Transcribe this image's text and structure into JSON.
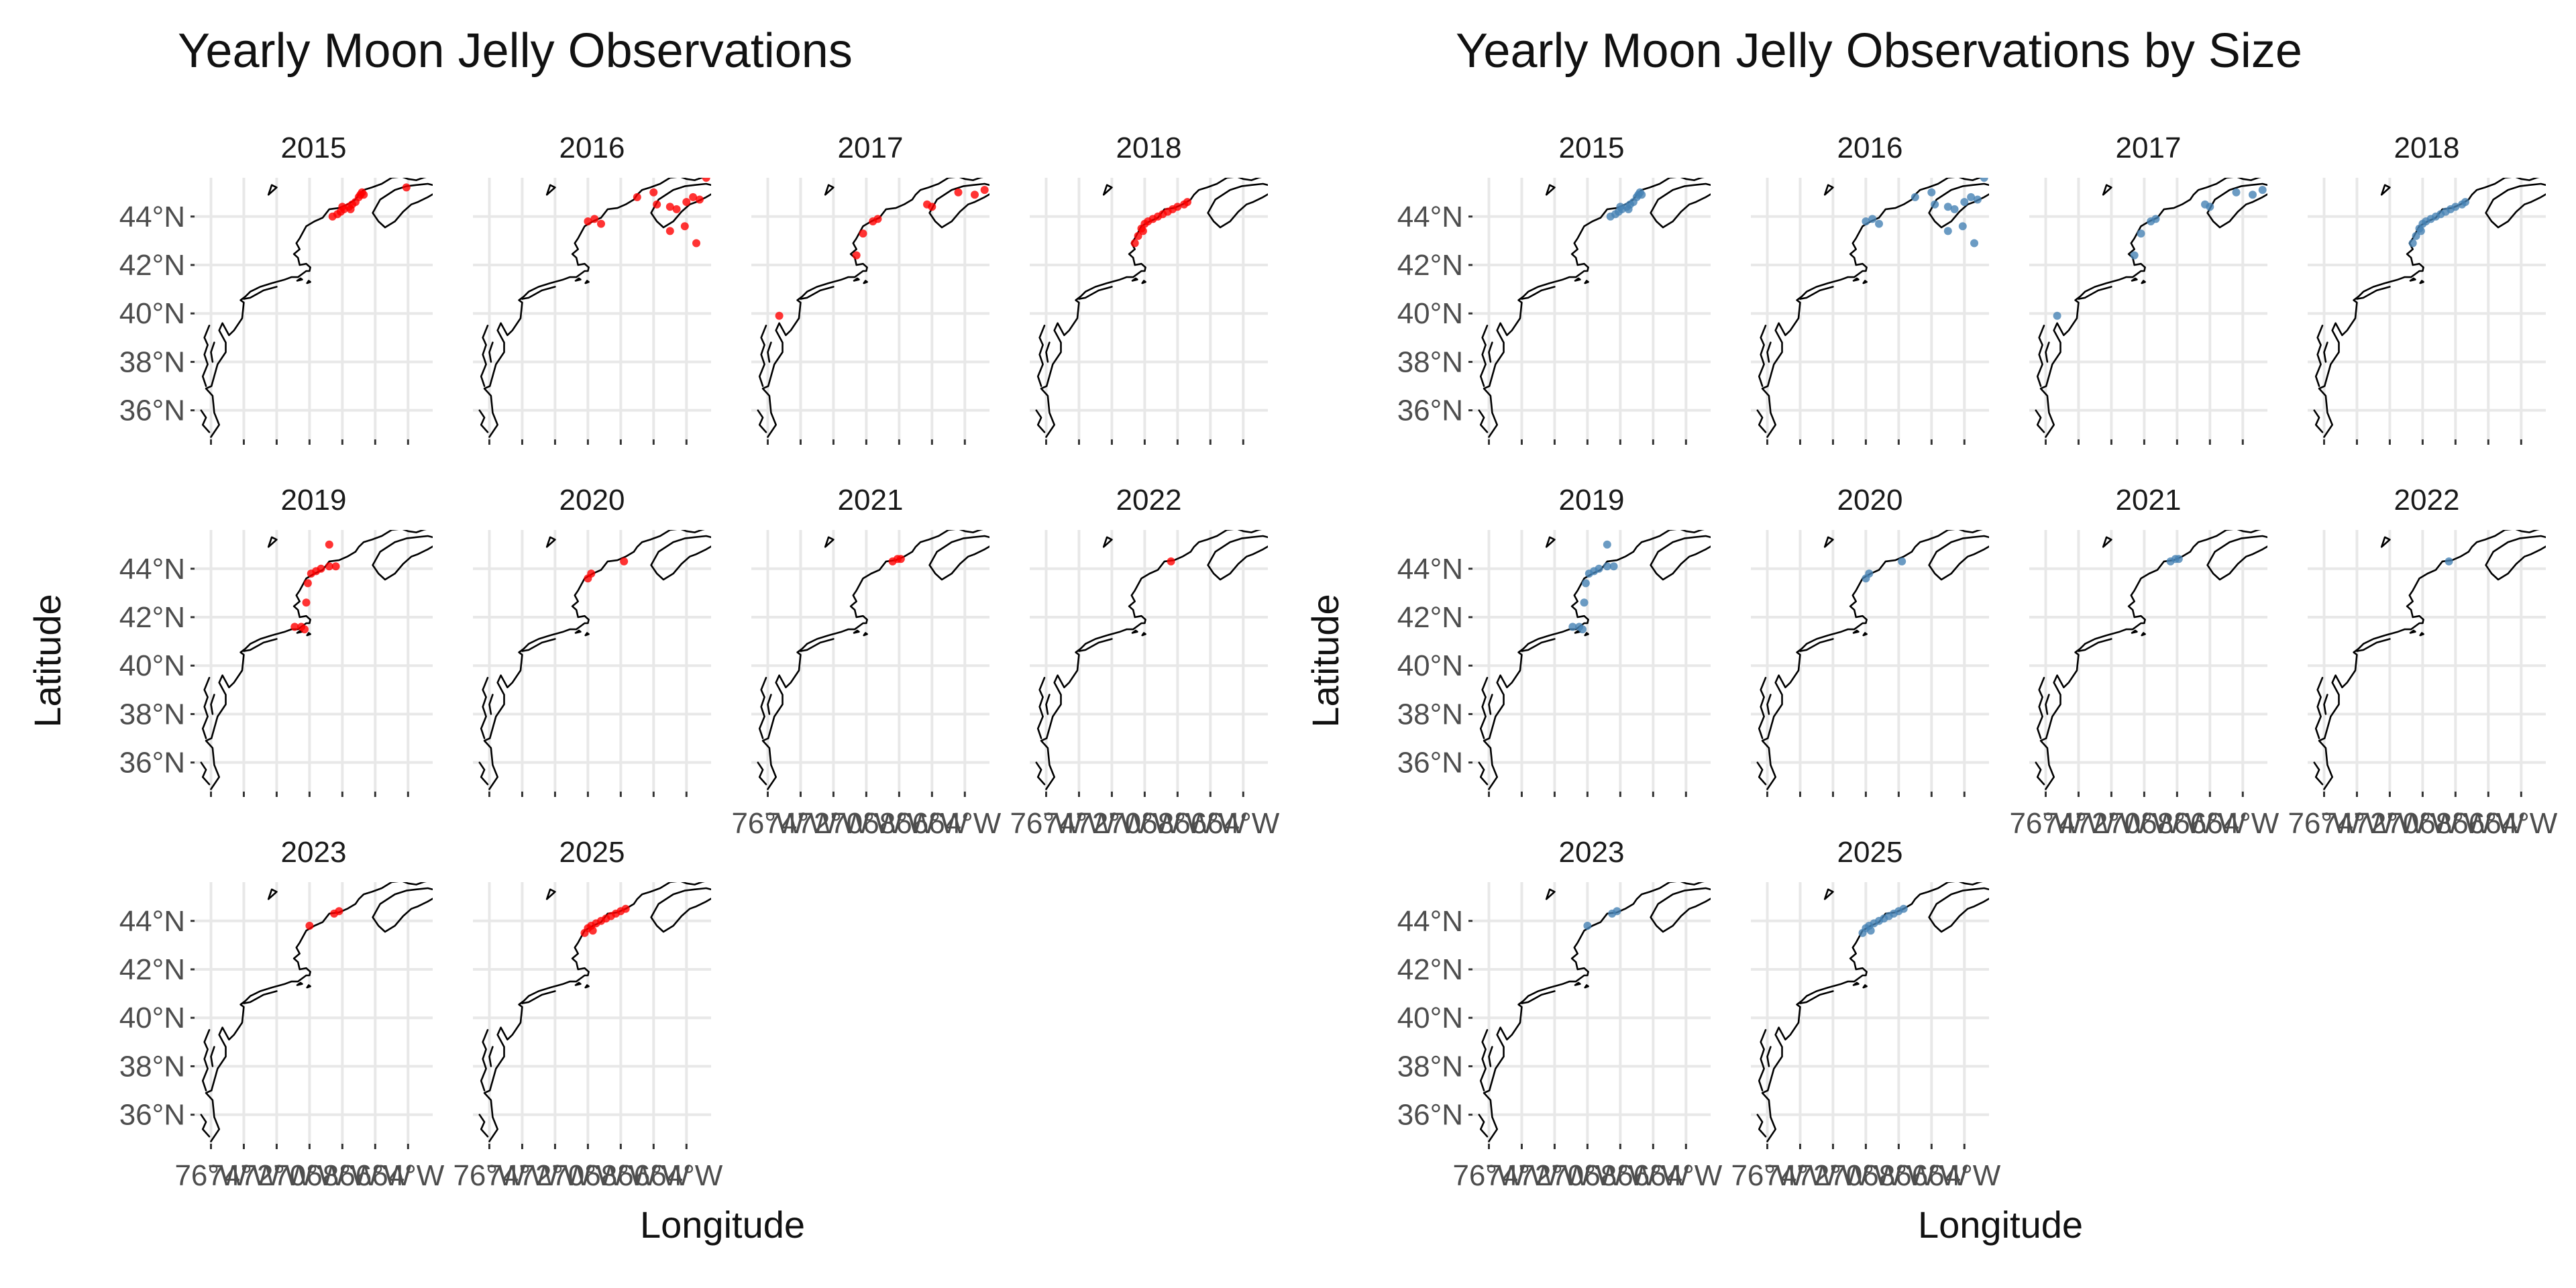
{
  "chart_data": [
    {
      "type": "scatter",
      "title": "Yearly Moon Jelly Observations",
      "xlabel": "Longitude",
      "ylabel": "Latitude",
      "point_color": "#ff0000",
      "facet_variable": "year",
      "xlim": [
        -77,
        -62.5
      ],
      "ylim": [
        34.8,
        45.6
      ],
      "x_ticks": [
        "76°W",
        "74°W",
        "72°W",
        "70°W",
        "68°W",
        "66°W",
        "64°W"
      ],
      "y_ticks": [
        "36°N",
        "38°N",
        "40°N",
        "42°N",
        "44°N"
      ],
      "basemap": "US / Canada Atlantic coastline",
      "panels": [
        {
          "year": "2015",
          "points": [
            [
              -68.6,
              44.0
            ],
            [
              -68.3,
              44.1
            ],
            [
              -68.1,
              44.2
            ],
            [
              -67.9,
              44.3
            ],
            [
              -67.6,
              44.4
            ],
            [
              -67.4,
              44.5
            ],
            [
              -67.2,
              44.6
            ],
            [
              -67.0,
              44.8
            ],
            [
              -66.9,
              44.9
            ],
            [
              -66.8,
              45.0
            ],
            [
              -66.7,
              44.9
            ],
            [
              -68.0,
              44.4
            ],
            [
              -67.5,
              44.3
            ],
            [
              -64.1,
              45.2
            ]
          ]
        },
        {
          "year": "2016",
          "points": [
            [
              -70.0,
              43.8
            ],
            [
              -69.6,
              43.9
            ],
            [
              -69.2,
              43.7
            ],
            [
              -67.0,
              44.8
            ],
            [
              -66.0,
              45.0
            ],
            [
              -65.8,
              44.5
            ],
            [
              -65.0,
              44.4
            ],
            [
              -64.6,
              44.3
            ],
            [
              -64.0,
              44.6
            ],
            [
              -63.6,
              44.8
            ],
            [
              -63.2,
              44.7
            ],
            [
              -64.1,
              43.6
            ],
            [
              -65.0,
              43.4
            ],
            [
              -63.4,
              42.9
            ],
            [
              -62.8,
              45.6
            ]
          ]
        },
        {
          "year": "2017",
          "points": [
            [
              -75.3,
              39.9
            ],
            [
              -70.6,
              42.4
            ],
            [
              -70.2,
              43.3
            ],
            [
              -69.6,
              43.8
            ],
            [
              -69.3,
              43.9
            ],
            [
              -66.3,
              44.5
            ],
            [
              -66.0,
              44.4
            ],
            [
              -64.4,
              45.0
            ],
            [
              -63.4,
              44.9
            ],
            [
              -62.8,
              45.1
            ]
          ]
        },
        {
          "year": "2018",
          "points": [
            [
              -70.6,
              42.9
            ],
            [
              -70.4,
              43.2
            ],
            [
              -70.2,
              43.5
            ],
            [
              -70.0,
              43.7
            ],
            [
              -69.8,
              43.8
            ],
            [
              -69.5,
              43.9
            ],
            [
              -69.2,
              44.0
            ],
            [
              -68.9,
              44.1
            ],
            [
              -68.6,
              44.2
            ],
            [
              -68.3,
              44.3
            ],
            [
              -68.0,
              44.4
            ],
            [
              -67.6,
              44.5
            ],
            [
              -67.4,
              44.6
            ],
            [
              -70.1,
              43.4
            ]
          ]
        },
        {
          "year": "2019",
          "points": [
            [
              -70.9,
              41.6
            ],
            [
              -70.5,
              41.6
            ],
            [
              -70.3,
              41.5
            ],
            [
              -70.2,
              42.6
            ],
            [
              -70.1,
              43.4
            ],
            [
              -69.9,
              43.8
            ],
            [
              -69.6,
              43.9
            ],
            [
              -69.3,
              44.0
            ],
            [
              -68.8,
              44.1
            ],
            [
              -68.4,
              44.1
            ],
            [
              -68.8,
              45.0
            ]
          ]
        },
        {
          "year": "2020",
          "points": [
            [
              -70.0,
              43.6
            ],
            [
              -69.8,
              43.8
            ],
            [
              -67.8,
              44.3
            ]
          ]
        },
        {
          "year": "2021",
          "points": [
            [
              -68.4,
              44.3
            ],
            [
              -68.1,
              44.4
            ],
            [
              -67.9,
              44.4
            ]
          ]
        },
        {
          "year": "2022",
          "points": [
            [
              -68.4,
              44.3
            ]
          ]
        },
        {
          "year": "2023",
          "points": [
            [
              -70.0,
              43.8
            ],
            [
              -68.5,
              44.3
            ],
            [
              -68.2,
              44.4
            ]
          ]
        },
        {
          "year": "2025",
          "points": [
            [
              -70.2,
              43.5
            ],
            [
              -70.0,
              43.7
            ],
            [
              -69.8,
              43.8
            ],
            [
              -69.5,
              43.9
            ],
            [
              -69.2,
              44.0
            ],
            [
              -68.9,
              44.1
            ],
            [
              -68.6,
              44.2
            ],
            [
              -68.3,
              44.3
            ],
            [
              -68.0,
              44.4
            ],
            [
              -67.7,
              44.5
            ],
            [
              -69.7,
              43.6
            ]
          ]
        }
      ]
    },
    {
      "type": "scatter",
      "title": "Yearly Moon Jelly Observations by Size",
      "xlabel": "Longitude",
      "ylabel": "Latitude",
      "point_color": "#4682b4",
      "facet_variable": "year",
      "xlim": [
        -77,
        -62.5
      ],
      "ylim": [
        34.8,
        45.6
      ],
      "x_ticks": [
        "76°W",
        "74°W",
        "72°W",
        "70°W",
        "68°W",
        "66°W",
        "64°W"
      ],
      "y_ticks": [
        "36°N",
        "38°N",
        "40°N",
        "42°N",
        "44°N"
      ],
      "basemap": "US / Canada Atlantic coastline",
      "panels": [
        {
          "year": "2015",
          "points": [
            [
              -68.6,
              44.0
            ],
            [
              -68.3,
              44.1
            ],
            [
              -68.1,
              44.2
            ],
            [
              -67.9,
              44.3
            ],
            [
              -67.6,
              44.4
            ],
            [
              -67.4,
              44.5
            ],
            [
              -67.2,
              44.6
            ],
            [
              -67.0,
              44.8
            ],
            [
              -66.9,
              44.9
            ],
            [
              -66.8,
              45.0
            ],
            [
              -66.7,
              44.9
            ],
            [
              -68.0,
              44.4
            ],
            [
              -67.5,
              44.3
            ]
          ]
        },
        {
          "year": "2016",
          "points": [
            [
              -70.0,
              43.8
            ],
            [
              -69.6,
              43.9
            ],
            [
              -69.2,
              43.7
            ],
            [
              -67.0,
              44.8
            ],
            [
              -66.0,
              45.0
            ],
            [
              -65.8,
              44.5
            ],
            [
              -65.0,
              44.4
            ],
            [
              -64.6,
              44.3
            ],
            [
              -64.0,
              44.6
            ],
            [
              -63.6,
              44.8
            ],
            [
              -63.2,
              44.7
            ],
            [
              -64.1,
              43.6
            ],
            [
              -65.0,
              43.4
            ],
            [
              -63.4,
              42.9
            ],
            [
              -62.8,
              45.6
            ]
          ]
        },
        {
          "year": "2017",
          "points": [
            [
              -75.3,
              39.9
            ],
            [
              -70.6,
              42.4
            ],
            [
              -70.2,
              43.3
            ],
            [
              -69.6,
              43.8
            ],
            [
              -69.3,
              43.9
            ],
            [
              -66.3,
              44.5
            ],
            [
              -66.0,
              44.4
            ],
            [
              -64.4,
              45.0
            ],
            [
              -63.4,
              44.9
            ],
            [
              -62.8,
              45.1
            ]
          ]
        },
        {
          "year": "2018",
          "points": [
            [
              -70.6,
              42.9
            ],
            [
              -70.4,
              43.2
            ],
            [
              -70.2,
              43.5
            ],
            [
              -70.0,
              43.7
            ],
            [
              -69.8,
              43.8
            ],
            [
              -69.5,
              43.9
            ],
            [
              -69.2,
              44.0
            ],
            [
              -68.9,
              44.1
            ],
            [
              -68.6,
              44.2
            ],
            [
              -68.3,
              44.3
            ],
            [
              -68.0,
              44.4
            ],
            [
              -67.6,
              44.5
            ],
            [
              -67.4,
              44.6
            ],
            [
              -70.1,
              43.4
            ]
          ]
        },
        {
          "year": "2019",
          "points": [
            [
              -70.9,
              41.6
            ],
            [
              -70.5,
              41.6
            ],
            [
              -70.3,
              41.5
            ],
            [
              -70.2,
              42.6
            ],
            [
              -70.1,
              43.4
            ],
            [
              -69.9,
              43.8
            ],
            [
              -69.6,
              43.9
            ],
            [
              -69.3,
              44.0
            ],
            [
              -68.8,
              44.1
            ],
            [
              -68.4,
              44.1
            ],
            [
              -68.8,
              45.0
            ]
          ]
        },
        {
          "year": "2020",
          "points": [
            [
              -70.0,
              43.6
            ],
            [
              -69.8,
              43.8
            ],
            [
              -67.8,
              44.3
            ]
          ]
        },
        {
          "year": "2021",
          "points": [
            [
              -68.4,
              44.3
            ],
            [
              -68.1,
              44.4
            ],
            [
              -67.9,
              44.4
            ]
          ]
        },
        {
          "year": "2022",
          "points": [
            [
              -68.4,
              44.3
            ]
          ]
        },
        {
          "year": "2023",
          "points": [
            [
              -70.0,
              43.8
            ],
            [
              -68.5,
              44.3
            ],
            [
              -68.2,
              44.4
            ]
          ]
        },
        {
          "year": "2025",
          "points": [
            [
              -70.2,
              43.5
            ],
            [
              -70.0,
              43.7
            ],
            [
              -69.8,
              43.8
            ],
            [
              -69.5,
              43.9
            ],
            [
              -69.2,
              44.0
            ],
            [
              -68.9,
              44.1
            ],
            [
              -68.6,
              44.2
            ],
            [
              -68.3,
              44.3
            ],
            [
              -68.0,
              44.4
            ],
            [
              -67.7,
              44.5
            ],
            [
              -69.7,
              43.6
            ]
          ]
        }
      ]
    }
  ]
}
